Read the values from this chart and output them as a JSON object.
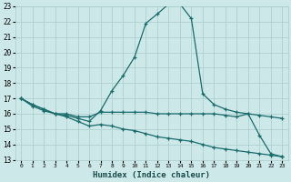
{
  "title": "",
  "xlabel": "Humidex (Indice chaleur)",
  "bg_color": "#cde8e8",
  "grid_color": "#aacccc",
  "line_color": "#1a6b6b",
  "xlim": [
    -0.5,
    23.5
  ],
  "ylim": [
    13,
    23
  ],
  "xticks": [
    0,
    1,
    2,
    3,
    4,
    5,
    6,
    7,
    8,
    9,
    10,
    11,
    12,
    13,
    14,
    15,
    16,
    17,
    18,
    19,
    20,
    21,
    22,
    23
  ],
  "yticks": [
    13,
    14,
    15,
    16,
    17,
    18,
    19,
    20,
    21,
    22,
    23
  ],
  "line1_x": [
    0,
    1,
    2,
    3,
    4,
    5,
    6,
    7,
    8,
    9,
    10,
    11,
    12,
    13,
    14,
    15,
    16,
    17,
    18,
    19,
    20,
    21,
    22,
    23
  ],
  "line1_y": [
    17.0,
    16.5,
    16.2,
    16.0,
    15.9,
    15.7,
    15.5,
    16.2,
    17.5,
    18.5,
    19.7,
    21.9,
    22.5,
    23.15,
    23.15,
    22.2,
    17.3,
    16.6,
    16.3,
    16.1,
    16.0,
    14.6,
    13.4,
    13.2
  ],
  "line2_x": [
    0,
    1,
    2,
    3,
    4,
    5,
    6,
    7,
    8,
    9,
    10,
    11,
    12,
    13,
    14,
    15,
    16,
    17,
    18,
    19,
    20,
    21,
    22,
    23
  ],
  "line2_y": [
    17.0,
    16.6,
    16.3,
    16.0,
    16.0,
    15.8,
    15.8,
    16.1,
    16.1,
    16.1,
    16.1,
    16.1,
    16.0,
    16.0,
    16.0,
    16.0,
    16.0,
    16.0,
    15.9,
    15.8,
    16.0,
    15.9,
    15.8,
    15.7
  ],
  "line3_x": [
    0,
    1,
    2,
    3,
    4,
    5,
    6,
    7,
    8,
    9,
    10,
    11,
    12,
    13,
    14,
    15,
    16,
    17,
    18,
    19,
    20,
    21,
    22,
    23
  ],
  "line3_y": [
    17.0,
    16.6,
    16.3,
    16.0,
    15.8,
    15.5,
    15.2,
    15.3,
    15.2,
    15.0,
    14.9,
    14.7,
    14.5,
    14.4,
    14.3,
    14.2,
    14.0,
    13.8,
    13.7,
    13.6,
    13.5,
    13.4,
    13.3,
    13.2
  ]
}
